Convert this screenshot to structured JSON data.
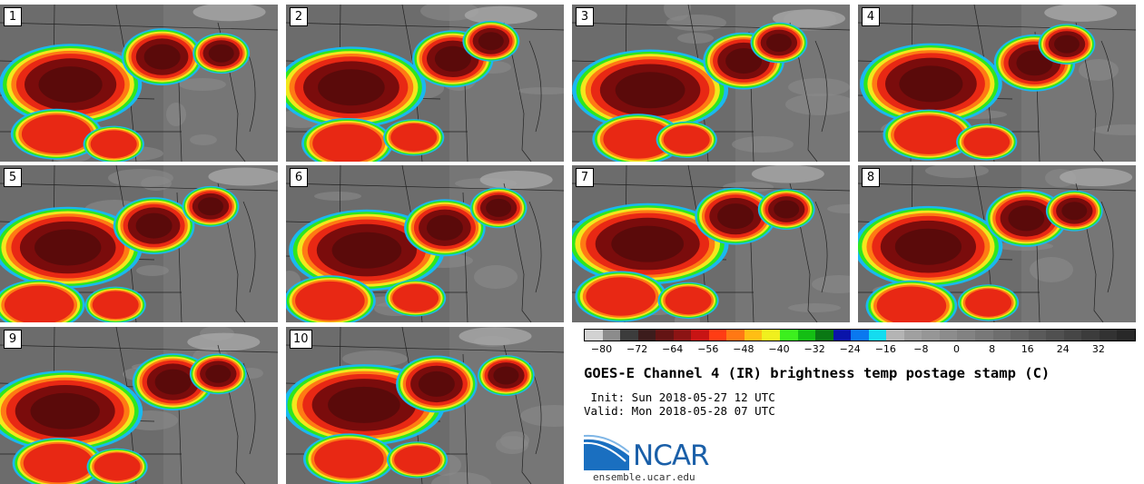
{
  "panels": [
    {
      "label": "1",
      "col": 0,
      "row": 0
    },
    {
      "label": "2",
      "col": 1,
      "row": 0
    },
    {
      "label": "3",
      "col": 2,
      "row": 0
    },
    {
      "label": "4",
      "col": 3,
      "row": 0
    },
    {
      "label": "5",
      "col": 0,
      "row": 1
    },
    {
      "label": "6",
      "col": 1,
      "row": 1
    },
    {
      "label": "7",
      "col": 2,
      "row": 1
    },
    {
      "label": "8",
      "col": 3,
      "row": 1
    },
    {
      "label": "9",
      "col": 0,
      "row": 2
    },
    {
      "label": "10",
      "col": 1,
      "row": 2
    }
  ],
  "colorbar": {
    "colors": [
      "#d2d2d2",
      "#8c8c8c",
      "#3c3c3c",
      "#3c1c1c",
      "#641414",
      "#8c1414",
      "#c81414",
      "#ff3c14",
      "#ff7814",
      "#ffbe14",
      "#f0f01e",
      "#3cf01e",
      "#14be14",
      "#0a7814",
      "#0a14aa",
      "#0a78f0",
      "#14dcf0",
      "#b4b4b4",
      "#a0a0a0",
      "#969696",
      "#8c8c8c",
      "#828282",
      "#787878",
      "#6e6e6e",
      "#646464",
      "#5a5a5a",
      "#505050",
      "#464646",
      "#3c3c3c",
      "#323232",
      "#282828"
    ],
    "ticks": [
      "−80",
      "−72",
      "−64",
      "−56",
      "−48",
      "−40",
      "−32",
      "−24",
      "−16",
      "−8",
      "0",
      "8",
      "16",
      "24",
      "32"
    ],
    "min": -84,
    "max": 40
  },
  "title": "GOES-E Channel 4 (IR) brightness temp postage stamp (C)",
  "init": " Init: Sun 2018-05-27 12 UTC",
  "valid": "Valid: Mon 2018-05-28 07 UTC",
  "logo_text": "NCAR",
  "url": "ensemble.ucar.edu",
  "storm_palette": {
    "outer": "#1ab8f0",
    "green": "#2ee61e",
    "yellow": "#f2e81c",
    "orange": "#ff7a14",
    "red": "#e82814",
    "darkred": "#7a0c0c",
    "core": "#5a0a0a"
  }
}
